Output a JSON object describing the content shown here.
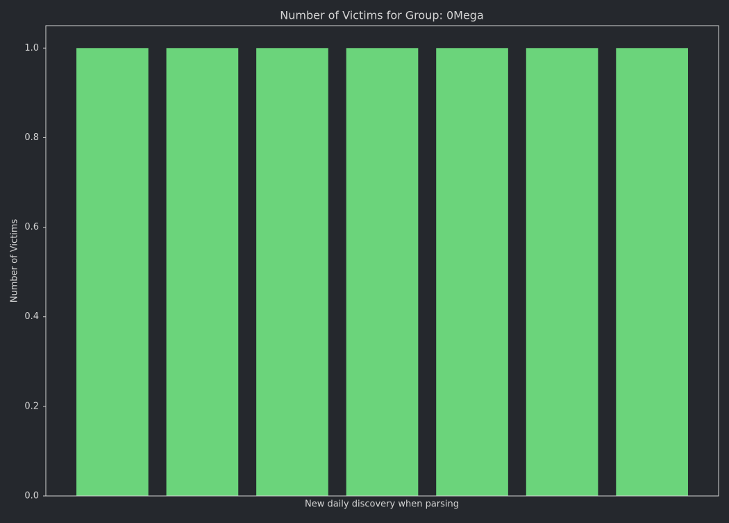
{
  "chart_data": {
    "type": "bar",
    "title": "Number of Victims for Group: 0Mega",
    "x_label": "New daily discovery when parsing",
    "y_label": "Number of Victims",
    "categories": [
      null,
      null,
      null,
      null,
      null,
      null,
      null
    ],
    "values": [
      1,
      1,
      1,
      1,
      1,
      1,
      1
    ],
    "color": "#6bd47b",
    "ylim": [
      0,
      1.05
    ],
    "yticks": [
      {
        "value": 0,
        "label": "0.0"
      },
      0.2,
      0.4,
      0.6,
      0.8,
      {
        "value": 1,
        "label": "1.0"
      }
    ],
    "grid": false
  }
}
